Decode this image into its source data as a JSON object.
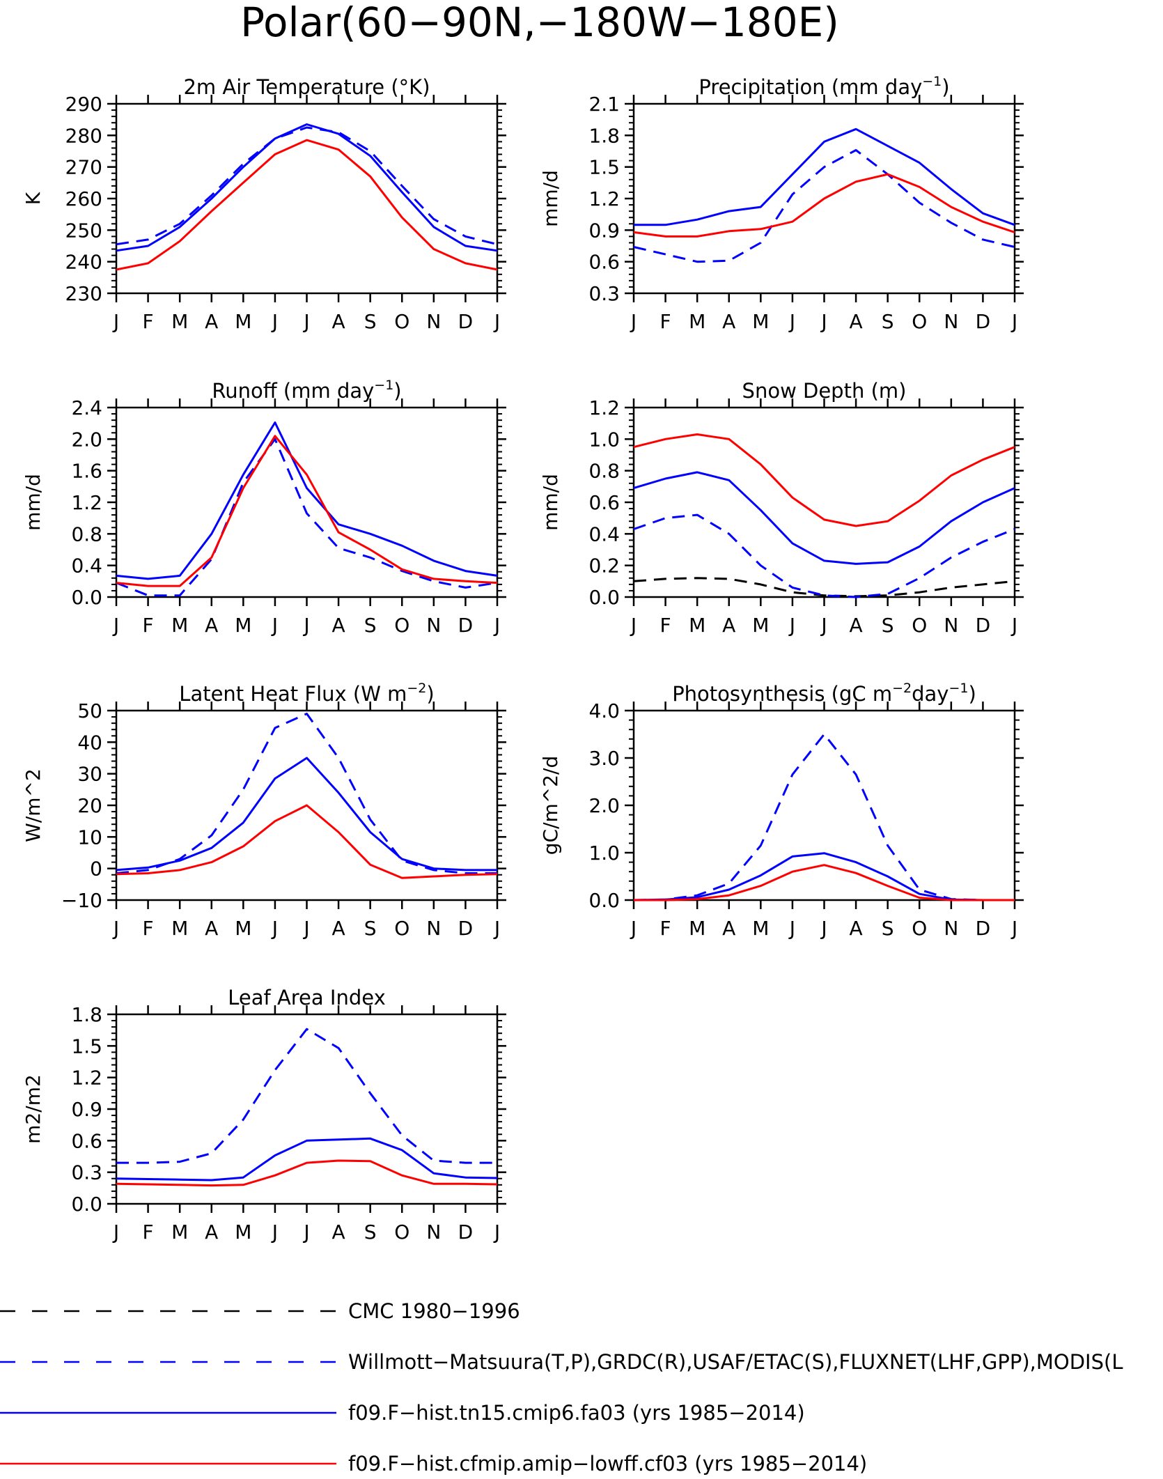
{
  "figure": {
    "title": "Polar(60−90N,−180W−180E)"
  },
  "months": [
    "J",
    "F",
    "M",
    "A",
    "M",
    "J",
    "J",
    "A",
    "S",
    "O",
    "N",
    "D",
    "J"
  ],
  "colors": {
    "obs": "#0000ff",
    "model1": "#0000ff",
    "model2": "#ff0000",
    "cmc": "#000000"
  },
  "legend": [
    {
      "key": "cmc",
      "label": "CMC 1980−1996",
      "color": "#000000",
      "dash": true
    },
    {
      "key": "obs",
      "label": "Willmott−Matsuura(T,P),GRDC(R),USAF/ETAC(S),FLUXNET(LHF,GPP),MODIS(L",
      "color": "#0000ff",
      "dash": true
    },
    {
      "key": "model1",
      "label": "f09.F−hist.tn15.cmip6.fa03 (yrs 1985−2014)",
      "color": "#0000ff",
      "dash": false
    },
    {
      "key": "model2",
      "label": "f09.F−hist.cfmip.amip−lowff.cf03 (yrs 1985−2014)",
      "color": "#ff0000",
      "dash": false
    }
  ],
  "chart_data": [
    {
      "type": "line",
      "id": "tsa",
      "title": "2m Air Temperature (°K)",
      "title_sup": "",
      "title_tail": "",
      "ylabel": "K",
      "ylim": [
        230,
        290
      ],
      "yticks": [
        230,
        240,
        250,
        260,
        270,
        280,
        290
      ],
      "categories": [
        "J",
        "F",
        "M",
        "A",
        "M",
        "J",
        "J",
        "A",
        "S",
        "O",
        "N",
        "D",
        "J"
      ],
      "series": [
        {
          "key": "obs",
          "values": [
            245.5,
            247,
            252,
            261,
            271,
            279,
            282.5,
            281,
            275,
            264,
            253.5,
            248,
            245.5
          ]
        },
        {
          "key": "model1",
          "values": [
            243.5,
            245,
            251,
            260,
            270,
            279,
            283.5,
            280.5,
            273.5,
            262,
            251,
            245,
            243.5
          ]
        },
        {
          "key": "model2",
          "values": [
            237.5,
            239.5,
            246.5,
            256,
            265,
            274,
            278.5,
            275.5,
            267,
            254,
            244,
            239.5,
            237.5
          ]
        }
      ]
    },
    {
      "type": "line",
      "id": "prec",
      "title": "Precipitation (mm day",
      "title_sup": "−1",
      "title_tail": ")",
      "ylabel": "mm/d",
      "ylim": [
        0.3,
        2.1
      ],
      "yticks": [
        0.3,
        0.6,
        0.9,
        1.2,
        1.5,
        1.8,
        2.1
      ],
      "categories": [
        "J",
        "F",
        "M",
        "A",
        "M",
        "J",
        "J",
        "A",
        "S",
        "O",
        "N",
        "D",
        "J"
      ],
      "series": [
        {
          "key": "obs",
          "values": [
            0.74,
            0.67,
            0.6,
            0.61,
            0.78,
            1.24,
            1.5,
            1.66,
            1.43,
            1.16,
            0.97,
            0.81,
            0.74
          ]
        },
        {
          "key": "model1",
          "values": [
            0.95,
            0.95,
            1.0,
            1.08,
            1.12,
            1.43,
            1.74,
            1.86,
            1.7,
            1.54,
            1.29,
            1.06,
            0.95
          ]
        },
        {
          "key": "model2",
          "values": [
            0.88,
            0.84,
            0.84,
            0.89,
            0.91,
            0.98,
            1.2,
            1.36,
            1.43,
            1.31,
            1.12,
            0.98,
            0.88
          ]
        }
      ]
    },
    {
      "type": "line",
      "id": "runoff",
      "title": "Runoff (mm day",
      "title_sup": "−1",
      "title_tail": ")",
      "ylabel": "mm/d",
      "ylim": [
        0,
        2.4
      ],
      "yticks": [
        0.0,
        0.4,
        0.8,
        1.2,
        1.6,
        2.0,
        2.4
      ],
      "categories": [
        "J",
        "F",
        "M",
        "A",
        "M",
        "J",
        "J",
        "A",
        "S",
        "O",
        "N",
        "D",
        "J"
      ],
      "series": [
        {
          "key": "obs",
          "values": [
            0.18,
            0.02,
            0.02,
            0.48,
            1.45,
            2.0,
            1.06,
            0.62,
            0.5,
            0.33,
            0.2,
            0.12,
            0.18
          ]
        },
        {
          "key": "model1",
          "values": [
            0.27,
            0.23,
            0.27,
            0.8,
            1.55,
            2.21,
            1.38,
            0.92,
            0.8,
            0.65,
            0.46,
            0.33,
            0.27
          ]
        },
        {
          "key": "model2",
          "values": [
            0.18,
            0.14,
            0.14,
            0.5,
            1.38,
            2.04,
            1.55,
            0.82,
            0.6,
            0.35,
            0.23,
            0.2,
            0.18
          ]
        }
      ]
    },
    {
      "type": "line",
      "id": "snow",
      "title": "Snow Depth (m)",
      "title_sup": "",
      "title_tail": "",
      "ylabel": "mm/d",
      "ylim": [
        0,
        1.2
      ],
      "yticks": [
        0.0,
        0.2,
        0.4,
        0.6,
        0.8,
        1.0,
        1.2
      ],
      "categories": [
        "J",
        "F",
        "M",
        "A",
        "M",
        "J",
        "J",
        "A",
        "S",
        "O",
        "N",
        "D",
        "J"
      ],
      "series": [
        {
          "key": "cmc",
          "values": [
            0.1,
            0.115,
            0.12,
            0.115,
            0.08,
            0.03,
            0.01,
            0.005,
            0.01,
            0.03,
            0.06,
            0.08,
            0.1
          ]
        },
        {
          "key": "obs",
          "values": [
            0.43,
            0.5,
            0.52,
            0.4,
            0.2,
            0.06,
            0.01,
            0.0,
            0.02,
            0.12,
            0.25,
            0.35,
            0.43
          ]
        },
        {
          "key": "model1",
          "values": [
            0.69,
            0.75,
            0.79,
            0.74,
            0.55,
            0.34,
            0.23,
            0.21,
            0.22,
            0.32,
            0.48,
            0.6,
            0.69
          ]
        },
        {
          "key": "model2",
          "values": [
            0.95,
            1.0,
            1.03,
            1.0,
            0.84,
            0.63,
            0.49,
            0.45,
            0.48,
            0.61,
            0.77,
            0.87,
            0.95
          ]
        }
      ]
    },
    {
      "type": "line",
      "id": "lhf",
      "title": "Latent Heat Flux (W m",
      "title_sup": "−2",
      "title_tail": ")",
      "ylabel": "W/m^2",
      "ylim": [
        -10,
        50
      ],
      "yticks": [
        -10,
        0,
        10,
        20,
        30,
        40,
        50
      ],
      "categories": [
        "J",
        "F",
        "M",
        "A",
        "M",
        "J",
        "J",
        "A",
        "S",
        "O",
        "N",
        "D",
        "J"
      ],
      "series": [
        {
          "key": "obs",
          "values": [
            -1.5,
            -0.5,
            3,
            10.5,
            25,
            44.5,
            49,
            35,
            15.5,
            2.5,
            -0.5,
            -1.5,
            -1.5
          ]
        },
        {
          "key": "model1",
          "values": [
            -0.5,
            0.3,
            2.5,
            6.5,
            14.5,
            28.5,
            35,
            24,
            11.5,
            3,
            0,
            -0.5,
            -0.5
          ]
        },
        {
          "key": "model2",
          "values": [
            -1.8,
            -1.5,
            -0.5,
            2.0,
            7,
            15,
            20,
            11.5,
            1.2,
            -3,
            -2.5,
            -2,
            -1.8
          ]
        }
      ]
    },
    {
      "type": "line",
      "id": "gpp",
      "title": "Photosynthesis (gC m",
      "title_sup": "−2",
      "title_tail": "day",
      "title_sup2": "−1",
      "title_tail2": ")",
      "ylabel": "gC/m^2/d",
      "ylim": [
        0,
        4
      ],
      "yticks": [
        0.0,
        1.0,
        2.0,
        3.0,
        4.0
      ],
      "ytick_fmt": 1,
      "categories": [
        "J",
        "F",
        "M",
        "A",
        "M",
        "J",
        "J",
        "A",
        "S",
        "O",
        "N",
        "D",
        "J"
      ],
      "series": [
        {
          "key": "obs",
          "values": [
            0.0,
            0.01,
            0.1,
            0.35,
            1.15,
            2.65,
            3.5,
            2.65,
            1.15,
            0.22,
            0.02,
            0.0,
            0.0
          ]
        },
        {
          "key": "model1",
          "values": [
            0.0,
            0.01,
            0.06,
            0.22,
            0.52,
            0.92,
            0.99,
            0.8,
            0.5,
            0.13,
            0.01,
            0.0,
            0.0
          ]
        },
        {
          "key": "model2",
          "values": [
            0.0,
            0.0,
            0.02,
            0.1,
            0.3,
            0.6,
            0.74,
            0.57,
            0.3,
            0.05,
            0.0,
            0.0,
            0.0
          ]
        }
      ]
    },
    {
      "type": "line",
      "id": "lai",
      "title": "Leaf Area Index",
      "title_sup": "",
      "title_tail": "",
      "ylabel": "m2/m2",
      "ylim": [
        0,
        1.8
      ],
      "yticks": [
        0.0,
        0.3,
        0.6,
        0.9,
        1.2,
        1.5,
        1.8
      ],
      "categories": [
        "J",
        "F",
        "M",
        "A",
        "M",
        "J",
        "J",
        "A",
        "S",
        "O",
        "N",
        "D",
        "J"
      ],
      "series": [
        {
          "key": "obs",
          "values": [
            0.39,
            0.39,
            0.4,
            0.48,
            0.8,
            1.27,
            1.66,
            1.48,
            1.05,
            0.65,
            0.41,
            0.39,
            0.39
          ]
        },
        {
          "key": "model1",
          "values": [
            0.24,
            0.235,
            0.23,
            0.225,
            0.25,
            0.46,
            0.6,
            0.61,
            0.62,
            0.51,
            0.29,
            0.25,
            0.245
          ]
        },
        {
          "key": "model2",
          "values": [
            0.19,
            0.185,
            0.18,
            0.175,
            0.18,
            0.27,
            0.39,
            0.41,
            0.405,
            0.27,
            0.19,
            0.19,
            0.185
          ]
        }
      ]
    }
  ]
}
